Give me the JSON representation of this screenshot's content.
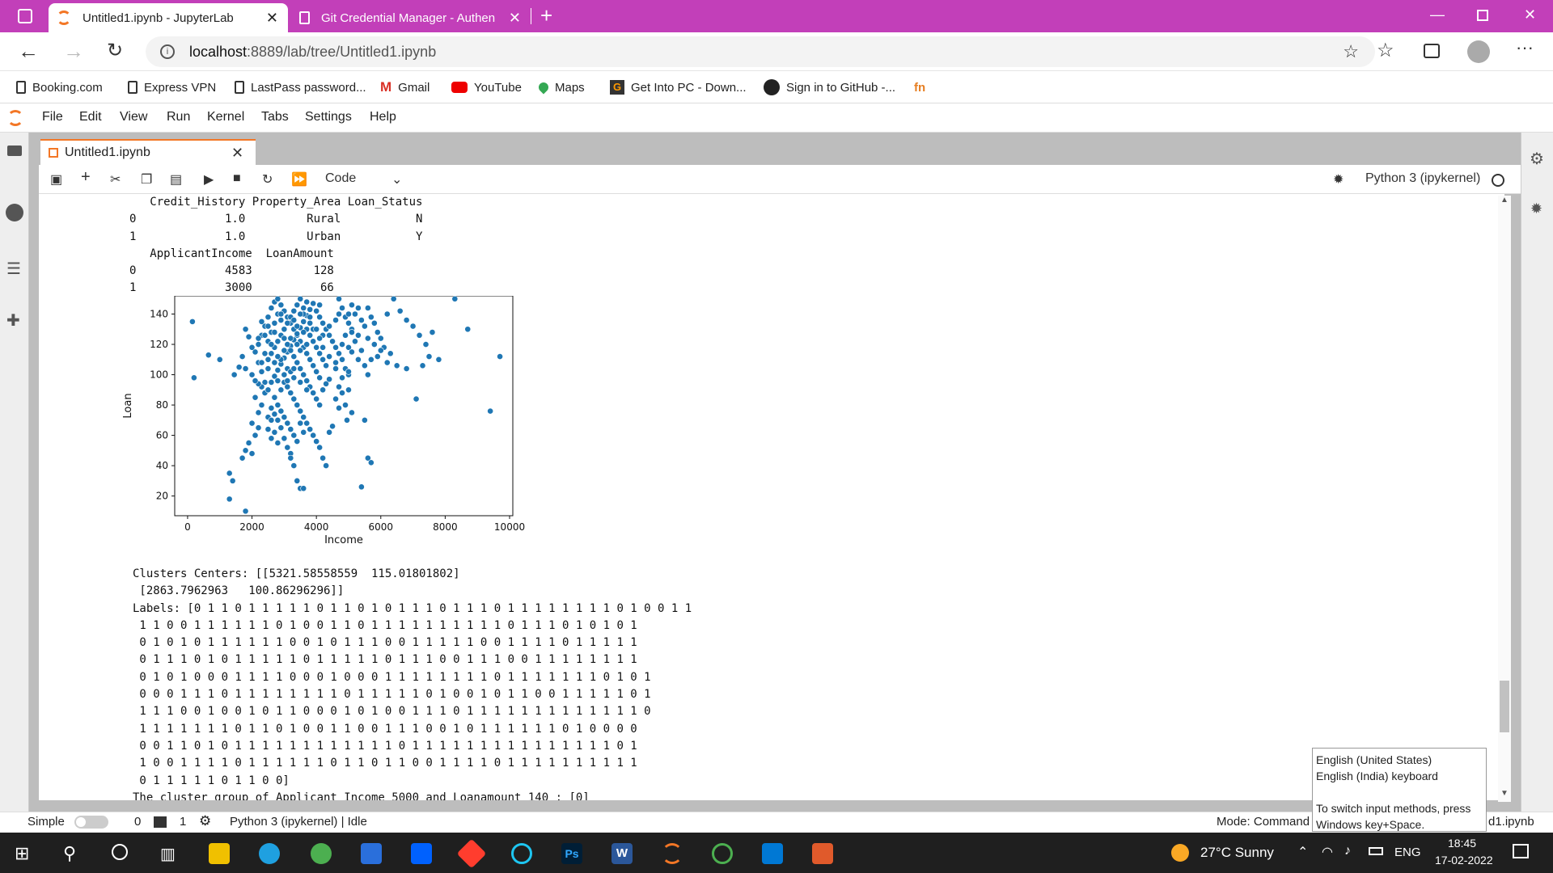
{
  "browser": {
    "tabs": [
      {
        "title": "Untitled1.ipynb - JupyterLab"
      },
      {
        "title": "Git Credential Manager - Authen"
      }
    ],
    "url_host": "localhost",
    "url_path": ":8889/lab/tree/Untitled1.ipynb",
    "bookmarks": [
      "Booking.com",
      "Express VPN",
      "LastPass password...",
      "Gmail",
      "YouTube",
      "Maps",
      "Get Into PC - Down...",
      "Sign in to GitHub -..."
    ]
  },
  "jupyter": {
    "menu": [
      "File",
      "Edit",
      "View",
      "Run",
      "Kernel",
      "Tabs",
      "Settings",
      "Help"
    ],
    "doc_tab": "Untitled1.ipynb",
    "cell_type": "Code",
    "kernel": "Python 3 (ipykernel)"
  },
  "output": {
    "text1": "   Credit_History Property_Area Loan_Status\n0             1.0         Rural           N\n1             1.0         Urban           Y\n   ApplicantIncome  LoanAmount\n0             4583         128\n1             3000          66",
    "text2": "Clusters Centers: [[5321.58558559  115.01801802]\n [2863.7962963   100.86296296]]\nLabels: [0 1 1 0 1 1 1 1 1 0 1 1 0 1 0 1 1 1 0 1 1 1 0 1 1 1 1 1 1 1 1 0 1 0 0 1 1\n 1 1 0 0 1 1 1 1 1 1 0 1 0 0 1 1 0 1 1 1 1 1 1 1 1 1 1 0 1 1 1 0 1 0 1 0 1\n 0 1 0 1 0 1 1 1 1 1 1 0 0 1 0 1 1 1 0 0 1 1 1 1 1 0 0 1 1 1 1 0 1 1 1 1 1\n 0 1 1 1 0 1 0 1 1 1 1 1 0 1 1 1 1 1 0 1 1 1 0 0 1 1 1 0 0 1 1 1 1 1 1 1 1\n 0 1 0 1 0 0 0 1 1 1 1 0 0 0 1 0 0 0 1 1 1 1 1 1 1 1 0 1 1 1 1 1 1 1 0 1 0 1\n 0 0 0 1 1 1 0 1 1 1 1 1 1 1 1 0 1 1 1 1 1 0 1 0 0 1 0 1 1 0 0 1 1 1 1 1 0 1\n 1 1 1 0 0 1 0 0 1 0 1 1 0 0 0 1 0 1 0 0 1 1 1 0 1 1 1 1 1 1 1 1 1 1 1 1 1 0\n 1 1 1 1 1 1 1 0 1 1 0 1 0 0 1 1 0 0 1 1 1 0 0 1 0 1 1 1 1 1 1 0 1 0 0 0 0\n 0 0 1 1 0 1 0 1 1 1 1 1 1 1 1 1 1 1 1 0 1 1 1 1 1 1 1 1 1 1 1 1 1 1 1 0 1\n 1 0 0 1 1 1 1 0 1 1 1 1 1 1 0 1 1 0 1 1 0 0 1 1 1 1 0 1 1 1 1 1 1 1 1 1 1\n 0 1 1 1 1 1 0 1 1 0 0]\nThe cluster group of Applicant Income 5000 and Loanamount 140 : [0]"
  },
  "chart_data": {
    "type": "scatter",
    "xlabel": "Income",
    "ylabel": "Loan",
    "xticks": [
      "0",
      "2000",
      "4000",
      "6000",
      "8000",
      "10000"
    ],
    "yticks": [
      "20",
      "40",
      "60",
      "80",
      "100",
      "120",
      "140"
    ],
    "xlim": [
      -400,
      10100
    ],
    "ylim": [
      7,
      152
    ],
    "color": "#1f77b4",
    "points": [
      [
        150,
        135
      ],
      [
        200,
        98
      ],
      [
        650,
        113
      ],
      [
        1000,
        110
      ],
      [
        1450,
        100
      ],
      [
        1300,
        35
      ],
      [
        1400,
        30
      ],
      [
        1300,
        18
      ],
      [
        1800,
        10
      ],
      [
        1700,
        45
      ],
      [
        1800,
        50
      ],
      [
        1900,
        55
      ],
      [
        2000,
        48
      ],
      [
        2100,
        60
      ],
      [
        2200,
        65
      ],
      [
        2000,
        68
      ],
      [
        2200,
        75
      ],
      [
        2300,
        80
      ],
      [
        2100,
        85
      ],
      [
        2400,
        88
      ],
      [
        2500,
        72
      ],
      [
        2600,
        70
      ],
      [
        2700,
        62
      ],
      [
        2800,
        55
      ],
      [
        3000,
        58
      ],
      [
        3100,
        52
      ],
      [
        3200,
        48
      ],
      [
        3300,
        40
      ],
      [
        3400,
        30
      ],
      [
        3500,
        25
      ],
      [
        3600,
        25
      ],
      [
        3200,
        45
      ],
      [
        2900,
        65
      ],
      [
        2500,
        90
      ],
      [
        2400,
        95
      ],
      [
        2300,
        102
      ],
      [
        2200,
        108
      ],
      [
        2100,
        115
      ],
      [
        2000,
        118
      ],
      [
        1900,
        125
      ],
      [
        1800,
        130
      ],
      [
        1700,
        112
      ],
      [
        1800,
        104
      ],
      [
        1600,
        105
      ],
      [
        2000,
        100
      ],
      [
        2200,
        120
      ],
      [
        2300,
        126
      ],
      [
        2400,
        132
      ],
      [
        2500,
        138
      ],
      [
        2600,
        144
      ],
      [
        2700,
        148
      ],
      [
        2800,
        150
      ],
      [
        2900,
        146
      ],
      [
        3000,
        142
      ],
      [
        3100,
        138
      ],
      [
        3200,
        134
      ],
      [
        3300,
        130
      ],
      [
        3400,
        126
      ],
      [
        3500,
        122
      ],
      [
        3600,
        118
      ],
      [
        3700,
        114
      ],
      [
        3800,
        110
      ],
      [
        3900,
        106
      ],
      [
        4000,
        102
      ],
      [
        4100,
        98
      ],
      [
        3000,
        95
      ],
      [
        3100,
        92
      ],
      [
        3200,
        88
      ],
      [
        3300,
        84
      ],
      [
        3400,
        80
      ],
      [
        3500,
        76
      ],
      [
        3600,
        72
      ],
      [
        3700,
        68
      ],
      [
        3800,
        64
      ],
      [
        3900,
        60
      ],
      [
        4000,
        56
      ],
      [
        4100,
        52
      ],
      [
        4200,
        45
      ],
      [
        4300,
        40
      ],
      [
        4400,
        62
      ],
      [
        4500,
        66
      ],
      [
        2600,
        95
      ],
      [
        2700,
        99
      ],
      [
        2800,
        103
      ],
      [
        2900,
        107
      ],
      [
        3000,
        111
      ],
      [
        3100,
        115
      ],
      [
        3200,
        119
      ],
      [
        3300,
        123
      ],
      [
        3400,
        127
      ],
      [
        3500,
        131
      ],
      [
        3600,
        135
      ],
      [
        3700,
        139
      ],
      [
        3800,
        143
      ],
      [
        3900,
        147
      ],
      [
        4000,
        142
      ],
      [
        4100,
        138
      ],
      [
        4200,
        134
      ],
      [
        4300,
        130
      ],
      [
        4400,
        126
      ],
      [
        4500,
        122
      ],
      [
        4600,
        118
      ],
      [
        4700,
        114
      ],
      [
        4800,
        110
      ],
      [
        4900,
        104
      ],
      [
        5000,
        100
      ],
      [
        4800,
        88
      ],
      [
        4600,
        84
      ],
      [
        4700,
        78
      ],
      [
        5100,
        75
      ],
      [
        4200,
        90
      ],
      [
        4300,
        94
      ],
      [
        4400,
        97
      ],
      [
        4600,
        104
      ],
      [
        2500,
        110
      ],
      [
        2600,
        114
      ],
      [
        2700,
        118
      ],
      [
        2800,
        122
      ],
      [
        2900,
        126
      ],
      [
        3000,
        130
      ],
      [
        3100,
        134
      ],
      [
        3200,
        138
      ],
      [
        3300,
        142
      ],
      [
        3400,
        146
      ],
      [
        3500,
        150
      ],
      [
        3600,
        144
      ],
      [
        3700,
        130
      ],
      [
        3800,
        126
      ],
      [
        3900,
        122
      ],
      [
        4000,
        118
      ],
      [
        4100,
        114
      ],
      [
        4200,
        110
      ],
      [
        4300,
        106
      ],
      [
        2400,
        114
      ],
      [
        2500,
        122
      ],
      [
        2600,
        128
      ],
      [
        2700,
        134
      ],
      [
        2800,
        140
      ],
      [
        2900,
        136
      ],
      [
        3000,
        124
      ],
      [
        3100,
        120
      ],
      [
        3200,
        116
      ],
      [
        3300,
        112
      ],
      [
        3400,
        108
      ],
      [
        3500,
        104
      ],
      [
        3600,
        100
      ],
      [
        3700,
        96
      ],
      [
        3800,
        92
      ],
      [
        3900,
        88
      ],
      [
        4000,
        84
      ],
      [
        4100,
        80
      ],
      [
        2700,
        85
      ],
      [
        2800,
        80
      ],
      [
        2900,
        76
      ],
      [
        3000,
        72
      ],
      [
        3100,
        68
      ],
      [
        3200,
        64
      ],
      [
        3300,
        60
      ],
      [
        3400,
        56
      ],
      [
        2600,
        78
      ],
      [
        2700,
        74
      ],
      [
        2800,
        70
      ],
      [
        2500,
        64
      ],
      [
        2600,
        58
      ],
      [
        3500,
        68
      ],
      [
        3600,
        62
      ],
      [
        4700,
        140
      ],
      [
        4800,
        144
      ],
      [
        4900,
        138
      ],
      [
        5000,
        134
      ],
      [
        5100,
        130
      ],
      [
        5200,
        140
      ],
      [
        5300,
        126
      ],
      [
        5400,
        136
      ],
      [
        5500,
        132
      ],
      [
        5600,
        144
      ],
      [
        5700,
        138
      ],
      [
        5800,
        134
      ],
      [
        5900,
        128
      ],
      [
        6000,
        124
      ],
      [
        6200,
        140
      ],
      [
        6400,
        150
      ],
      [
        6600,
        142
      ],
      [
        6800,
        136
      ],
      [
        7000,
        132
      ],
      [
        7200,
        126
      ],
      [
        7400,
        120
      ],
      [
        7600,
        128
      ],
      [
        7800,
        110
      ],
      [
        7300,
        106
      ],
      [
        7500,
        112
      ],
      [
        6500,
        106
      ],
      [
        6800,
        104
      ],
      [
        7100,
        84
      ],
      [
        5500,
        106
      ],
      [
        5600,
        100
      ],
      [
        5700,
        110
      ],
      [
        5900,
        112
      ],
      [
        6100,
        118
      ],
      [
        6300,
        114
      ],
      [
        5300,
        110
      ],
      [
        5400,
        116
      ],
      [
        5200,
        122
      ],
      [
        5100,
        128
      ],
      [
        5000,
        118
      ],
      [
        5000,
        90
      ],
      [
        4900,
        80
      ],
      [
        4950,
        70
      ],
      [
        5100,
        115
      ],
      [
        5000,
        102
      ],
      [
        4800,
        98
      ],
      [
        4700,
        92
      ],
      [
        5500,
        70
      ],
      [
        5600,
        45
      ],
      [
        5700,
        42
      ],
      [
        5400,
        26
      ],
      [
        8300,
        150
      ],
      [
        8700,
        130
      ],
      [
        9400,
        76
      ],
      [
        9700,
        112
      ],
      [
        4700,
        150
      ],
      [
        2900,
        110
      ],
      [
        3100,
        104
      ],
      [
        3300,
        98
      ],
      [
        3500,
        95
      ],
      [
        3700,
        90
      ],
      [
        2300,
        92
      ],
      [
        2200,
        94
      ],
      [
        2100,
        96
      ],
      [
        4200,
        126
      ],
      [
        4400,
        132
      ],
      [
        4600,
        136
      ],
      [
        3800,
        134
      ],
      [
        3600,
        128
      ],
      [
        3400,
        120
      ],
      [
        3200,
        102
      ],
      [
        3000,
        100
      ],
      [
        2800,
        96
      ],
      [
        4100,
        124
      ],
      [
        3900,
        130
      ],
      [
        3700,
        120
      ],
      [
        3500,
        116
      ],
      [
        3300,
        104
      ],
      [
        3100,
        96
      ],
      [
        2900,
        90
      ],
      [
        2700,
        108
      ],
      [
        2500,
        104
      ],
      [
        2300,
        108
      ],
      [
        2200,
        124
      ],
      [
        2400,
        126
      ],
      [
        2600,
        120
      ],
      [
        2800,
        112
      ],
      [
        3000,
        116
      ],
      [
        3200,
        124
      ],
      [
        3400,
        132
      ],
      [
        3600,
        140
      ],
      [
        3800,
        138
      ],
      [
        4000,
        130
      ],
      [
        4200,
        118
      ],
      [
        4400,
        112
      ],
      [
        4600,
        108
      ],
      [
        4800,
        120
      ],
      [
        4900,
        126
      ],
      [
        5000,
        140
      ],
      [
        5100,
        146
      ],
      [
        5300,
        144
      ],
      [
        5600,
        124
      ],
      [
        5800,
        120
      ],
      [
        6000,
        116
      ],
      [
        6200,
        108
      ],
      [
        3300,
        136
      ],
      [
        3500,
        140
      ],
      [
        3700,
        148
      ],
      [
        4100,
        146
      ],
      [
        2900,
        140
      ],
      [
        2700,
        128
      ],
      [
        2500,
        132
      ],
      [
        2300,
        135
      ]
    ]
  },
  "status": {
    "mode_label": "Simple",
    "count_a": "0",
    "count_b": "1",
    "kernel_state": "Python 3 (ipykernel) | Idle",
    "mode_text": "Mode: Command",
    "file_suffix": "d1.ipynb"
  },
  "tooltip": {
    "line1": "English (United States)",
    "line2": "English (India) keyboard",
    "line3": "To switch input methods, press",
    "line4": "Windows key+Space."
  },
  "taskbar": {
    "weather": "27°C  Sunny",
    "lang": "ENG",
    "time": "18:45",
    "date": "17-02-2022"
  }
}
